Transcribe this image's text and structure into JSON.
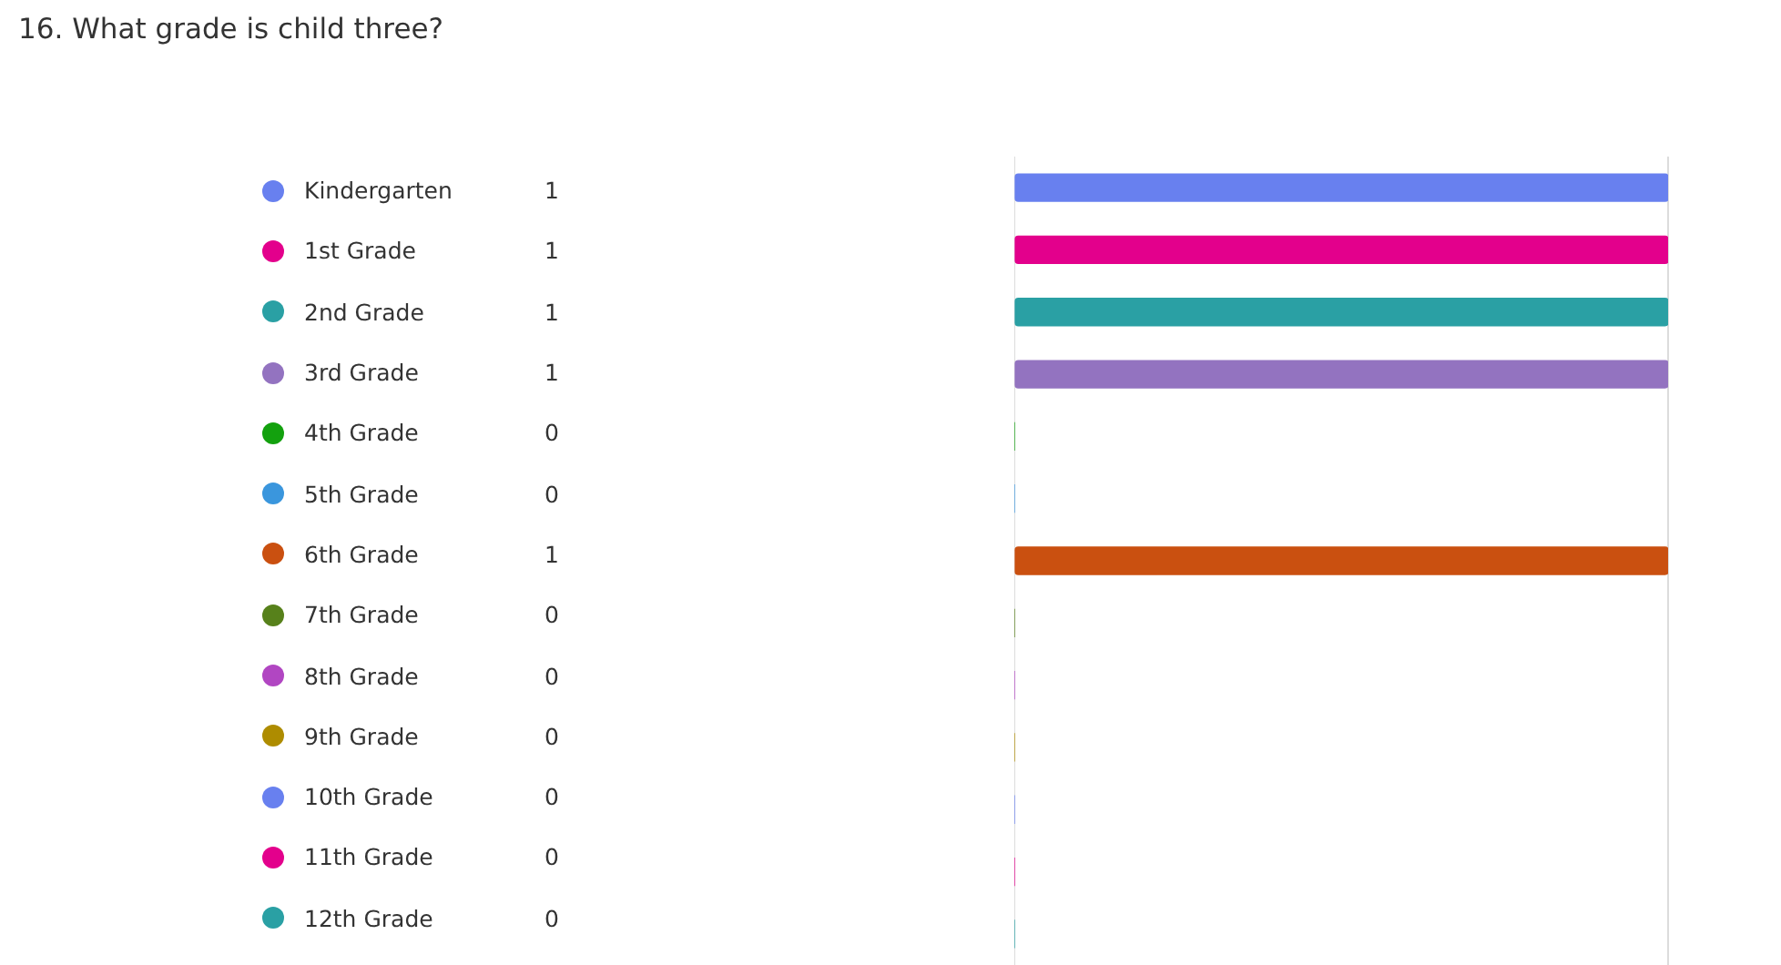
{
  "chart_data": {
    "type": "bar",
    "title": "16. What grade is child three?",
    "orientation": "horizontal",
    "categories": [
      "Kindergarten",
      "1st Grade",
      "2nd Grade",
      "3rd Grade",
      "4th Grade",
      "5th Grade",
      "6th Grade",
      "7th Grade",
      "8th Grade",
      "9th Grade",
      "10th Grade",
      "11th Grade",
      "12th Grade"
    ],
    "values": [
      1,
      1,
      1,
      1,
      0,
      0,
      1,
      0,
      0,
      0,
      0,
      0,
      0
    ],
    "colors": [
      "#6880ef",
      "#e3008c",
      "#2aa0a4",
      "#9373c0",
      "#13a10e",
      "#3a96dd",
      "#ca5010",
      "#57811b",
      "#b146c2",
      "#ae8c00",
      "#6880ef",
      "#e3008c",
      "#2aa0a4"
    ],
    "xlim": [
      0,
      1
    ],
    "xticks": [
      {
        "value": 0,
        "label": null
      },
      {
        "value": 1,
        "label": null
      }
    ],
    "grid": "x",
    "tick_labels": "y",
    "data_labels": true
  }
}
